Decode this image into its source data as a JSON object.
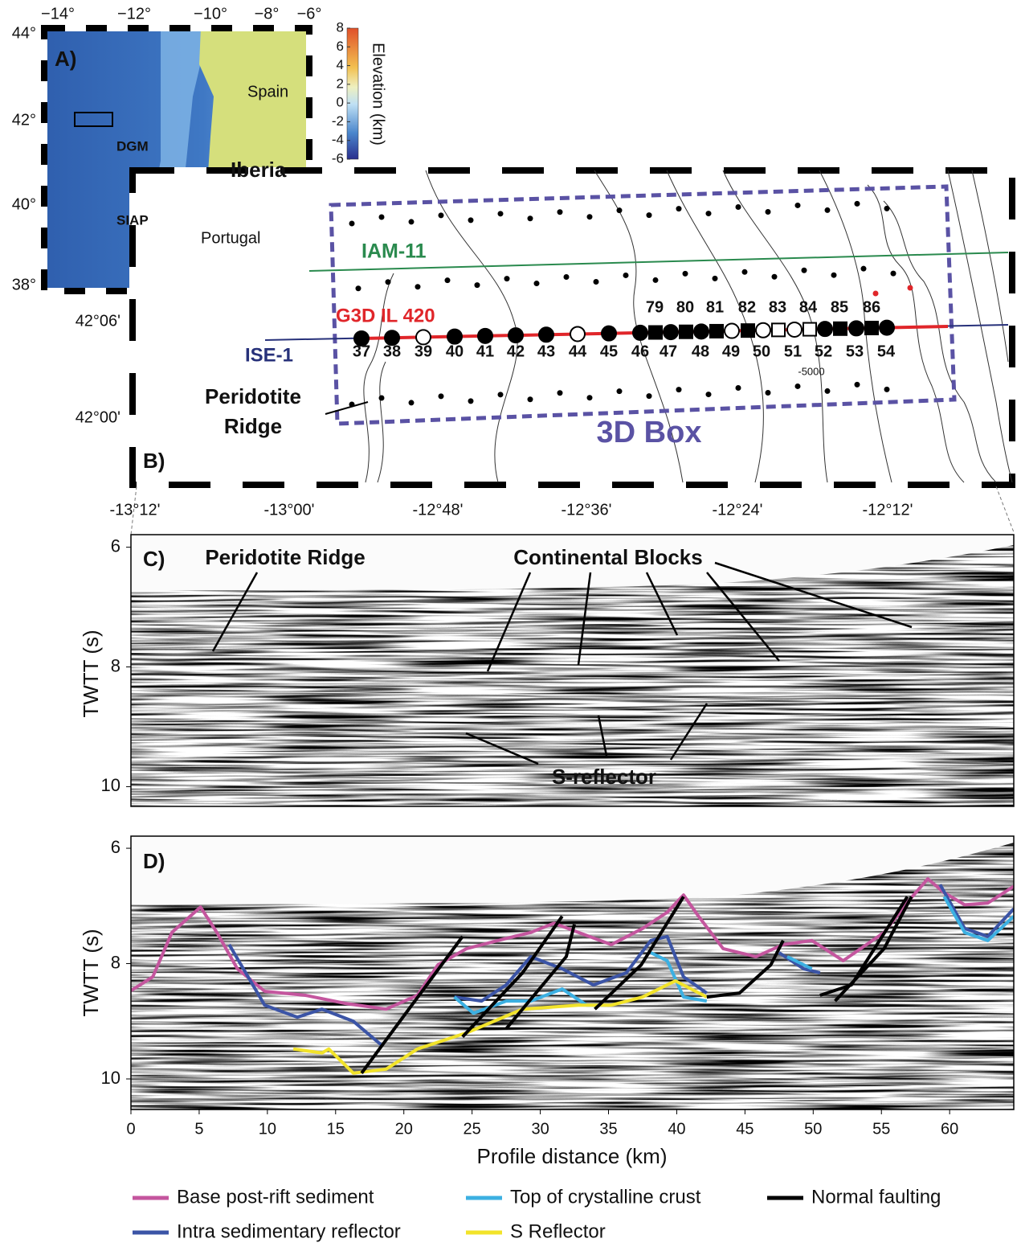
{
  "panel_a": {
    "label": "A)",
    "lon_ticks": [
      "−14°",
      "−12°",
      "−10°",
      "−8°",
      "−6°"
    ],
    "lat_ticks": [
      "44°",
      "42°",
      "40°",
      "38°"
    ],
    "places": [
      "Spain",
      "DGM",
      "Iberia",
      "SIAP",
      "Portugal"
    ],
    "colorbar": {
      "title": "Elevation (km)",
      "clim": [
        -6,
        8
      ],
      "ticks": [
        8,
        6,
        4,
        2,
        0,
        -2,
        -4,
        -6
      ]
    }
  },
  "panel_b": {
    "label": "B)",
    "lat_ticks": [
      "42°06'",
      "42°00'"
    ],
    "lon_ticks": [
      "-13°12'",
      "-13°00'",
      "-12°48'",
      "-12°36'",
      "-12°24'",
      "-12°12'"
    ],
    "lines": [
      "IAM-11",
      "G3D IL 420",
      "ISE-1"
    ],
    "stations_below": [
      "37",
      "38",
      "39",
      "40",
      "41",
      "42",
      "43",
      "44",
      "45",
      "46",
      "47",
      "48",
      "49",
      "50",
      "51",
      "52",
      "53",
      "54"
    ],
    "stations_above": [
      "79",
      "80",
      "81",
      "82",
      "83",
      "84",
      "85",
      "86"
    ],
    "ridge_label": [
      "Peridotite",
      "Ridge"
    ],
    "box_label": "3D Box",
    "contour_label": "-5000"
  },
  "panel_c": {
    "label": "C)",
    "ylabel": "TWTT (s)",
    "ylim": [
      10.33,
      5.79
    ],
    "yticks": [
      6,
      8,
      10
    ],
    "annotations": [
      "Peridotite Ridge",
      "Continental Blocks",
      "S-reflector"
    ]
  },
  "chart_data": {
    "type": "line",
    "label": "D)",
    "xlabel": "Profile distance (km)",
    "ylabel": "TWTT (s)",
    "xlim": [
      0,
      64.7
    ],
    "ylim": [
      10.53,
      5.79
    ],
    "xticks": [
      0,
      5,
      10,
      15,
      20,
      25,
      30,
      35,
      40,
      45,
      50,
      55,
      60
    ],
    "yticks": [
      6,
      8,
      10
    ],
    "series": [
      {
        "name": "Base post-rift sediment",
        "color": "#c4569e",
        "x": [
          0,
          1.6,
          3.0,
          5.1,
          6.3,
          7.8,
          9.8,
          12.8,
          15.7,
          18.7,
          21.0,
          22.5,
          24.6,
          26.9,
          29.3,
          31.0,
          32.8,
          35.2,
          37.5,
          39.3,
          40.5,
          41.6,
          43.4,
          45.8,
          47.8,
          49.9,
          52.2,
          55.2,
          57.0,
          58.4,
          59.6,
          61.1,
          62.8,
          64.7
        ],
        "values": [
          8.47,
          8.23,
          7.46,
          7.02,
          7.46,
          8.09,
          8.48,
          8.55,
          8.69,
          8.79,
          8.55,
          8.02,
          7.74,
          7.6,
          7.46,
          7.3,
          7.46,
          7.67,
          7.39,
          7.11,
          6.81,
          7.18,
          7.74,
          7.88,
          7.67,
          7.6,
          7.95,
          7.46,
          6.91,
          6.53,
          6.77,
          6.98,
          6.95,
          6.66
        ]
      },
      {
        "name": "Intra sedimentary reflector",
        "color": "#3b54a6",
        "x": [
          7.2,
          9.8,
          12.2,
          14.0,
          16.3,
          18.4,
          null,
          23.7,
          25.7,
          27.5,
          29.3,
          31.6,
          33.9,
          36.3,
          38.1,
          39.3,
          40.5,
          42.2,
          null,
          47.5,
          49.3,
          50.5,
          null,
          59.3,
          61.1,
          62.8,
          64.7
        ],
        "values": [
          7.67,
          8.72,
          8.93,
          8.79,
          9.0,
          9.42,
          null,
          8.58,
          8.65,
          8.37,
          7.88,
          8.09,
          8.37,
          8.16,
          7.6,
          7.53,
          8.23,
          8.51,
          null,
          7.81,
          8.09,
          8.16,
          null,
          6.63,
          7.39,
          7.53,
          7.05
        ]
      },
      {
        "name": "Top of crystalline crust",
        "color": "#3cb0e2",
        "x": [
          23.7,
          25.1,
          27.5,
          29.3,
          31.6,
          33.4,
          34.6,
          null,
          38.1,
          39.3,
          40.5,
          42.2,
          null,
          48.1,
          49.9,
          null,
          59.6,
          61.1,
          62.8,
          64.7
        ],
        "values": [
          8.58,
          8.86,
          8.65,
          8.65,
          8.44,
          8.72,
          8.72,
          null,
          7.81,
          7.95,
          8.58,
          8.65,
          null,
          7.88,
          8.09,
          null,
          6.84,
          7.46,
          7.6,
          7.18
        ]
      },
      {
        "name": "S Reflector",
        "color": "#f2e32a",
        "x": [
          11.9,
          14.0,
          14.5,
          16.3,
          18.7,
          21.0,
          24.6,
          28.7,
          32.8,
          35.2,
          37.5,
          39.9,
          42.2
        ],
        "values": [
          9.48,
          9.55,
          9.48,
          9.9,
          9.83,
          9.48,
          9.2,
          8.79,
          8.72,
          8.72,
          8.58,
          8.3,
          8.58
        ]
      },
      {
        "name": "Normal faulting",
        "color": "#000000",
        "x": [
          16.9,
          24.3,
          null,
          24.3,
          28.7,
          31.6,
          null,
          27.5,
          31.9,
          32.5,
          null,
          34.0,
          37.4,
          40.5,
          null,
          42.2,
          44.6,
          46.9,
          47.8,
          null,
          50.5,
          52.8,
          56.9,
          null,
          51.6,
          55.2,
          57.2
        ],
        "values": [
          9.9,
          7.53,
          null,
          9.27,
          8.16,
          7.18,
          null,
          9.13,
          7.88,
          7.32,
          null,
          8.79,
          8.02,
          6.84,
          null,
          8.58,
          8.51,
          8.02,
          7.6,
          null,
          8.55,
          8.37,
          6.84,
          null,
          8.65,
          7.74,
          6.84
        ]
      }
    ]
  }
}
